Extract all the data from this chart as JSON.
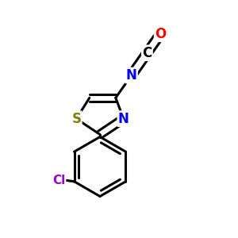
{
  "background": "#ffffff",
  "atom_colors": {
    "C": "#000000",
    "N": "#0000ff",
    "O": "#ff0000",
    "S": "#808000",
    "Cl": "#9900cc"
  },
  "bond_color": "#000000",
  "bond_width": 2.2,
  "font_size_atoms": 12,
  "font_size_cl": 11,
  "figsize": [
    3.0,
    3.0
  ],
  "dpi": 100
}
